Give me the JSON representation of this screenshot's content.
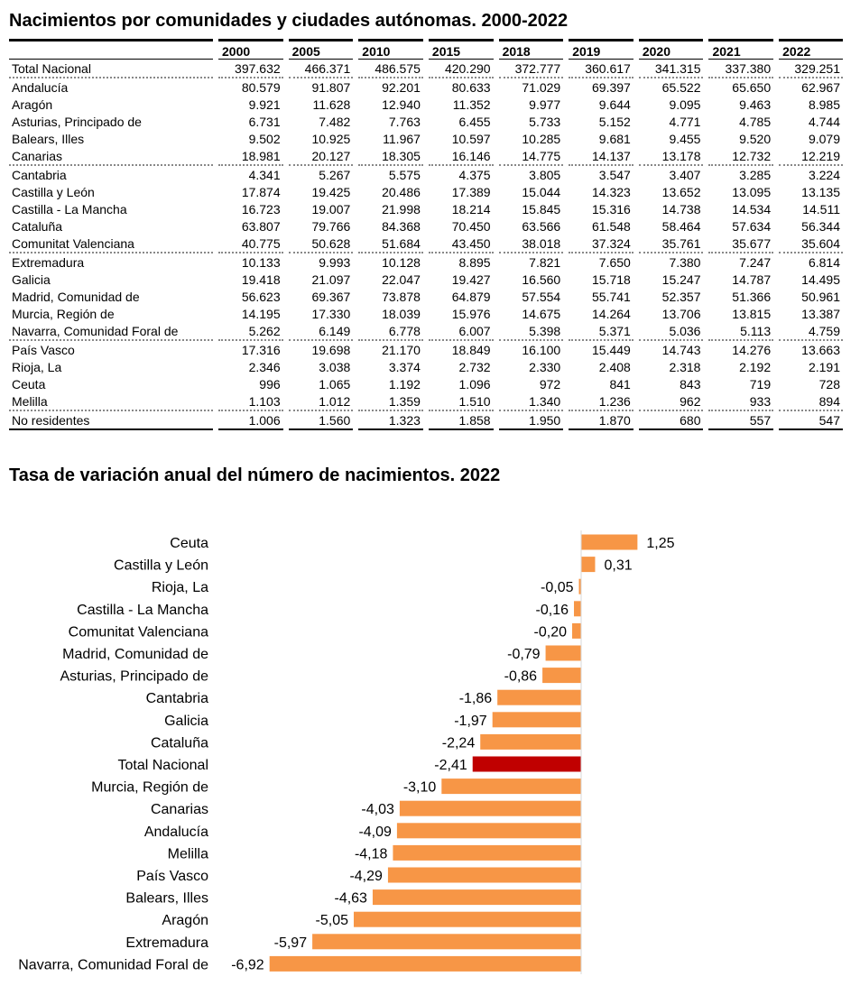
{
  "table": {
    "title": "Nacimientos por comunidades y ciudades autónomas. 2000-2022",
    "columns": [
      "2000",
      "2005",
      "2010",
      "2015",
      "2018",
      "2019",
      "2020",
      "2021",
      "2022"
    ],
    "rows": [
      {
        "label": "Total Nacional",
        "values": [
          "397.632",
          "466.371",
          "486.575",
          "420.290",
          "372.777",
          "360.617",
          "341.315",
          "337.380",
          "329.251"
        ]
      },
      {
        "label": "Andalucía",
        "values": [
          "80.579",
          "91.807",
          "92.201",
          "80.633",
          "71.029",
          "69.397",
          "65.522",
          "65.650",
          "62.967"
        ]
      },
      {
        "label": "Aragón",
        "values": [
          "9.921",
          "11.628",
          "12.940",
          "11.352",
          "9.977",
          "9.644",
          "9.095",
          "9.463",
          "8.985"
        ]
      },
      {
        "label": "Asturias, Principado de",
        "values": [
          "6.731",
          "7.482",
          "7.763",
          "6.455",
          "5.733",
          "5.152",
          "4.771",
          "4.785",
          "4.744"
        ]
      },
      {
        "label": "Balears, Illes",
        "values": [
          "9.502",
          "10.925",
          "11.967",
          "10.597",
          "10.285",
          "9.681",
          "9.455",
          "9.520",
          "9.079"
        ]
      },
      {
        "label": "Canarias",
        "values": [
          "18.981",
          "20.127",
          "18.305",
          "16.146",
          "14.775",
          "14.137",
          "13.178",
          "12.732",
          "12.219"
        ]
      },
      {
        "label": "Cantabria",
        "values": [
          "4.341",
          "5.267",
          "5.575",
          "4.375",
          "3.805",
          "3.547",
          "3.407",
          "3.285",
          "3.224"
        ]
      },
      {
        "label": "Castilla y León",
        "values": [
          "17.874",
          "19.425",
          "20.486",
          "17.389",
          "15.044",
          "14.323",
          "13.652",
          "13.095",
          "13.135"
        ]
      },
      {
        "label": "Castilla - La Mancha",
        "values": [
          "16.723",
          "19.007",
          "21.998",
          "18.214",
          "15.845",
          "15.316",
          "14.738",
          "14.534",
          "14.511"
        ]
      },
      {
        "label": "Cataluña",
        "values": [
          "63.807",
          "79.766",
          "84.368",
          "70.450",
          "63.566",
          "61.548",
          "58.464",
          "57.634",
          "56.344"
        ]
      },
      {
        "label": "Comunitat Valenciana",
        "values": [
          "40.775",
          "50.628",
          "51.684",
          "43.450",
          "38.018",
          "37.324",
          "35.761",
          "35.677",
          "35.604"
        ]
      },
      {
        "label": "Extremadura",
        "values": [
          "10.133",
          "9.993",
          "10.128",
          "8.895",
          "7.821",
          "7.650",
          "7.380",
          "7.247",
          "6.814"
        ]
      },
      {
        "label": "Galicia",
        "values": [
          "19.418",
          "21.097",
          "22.047",
          "19.427",
          "16.560",
          "15.718",
          "15.247",
          "14.787",
          "14.495"
        ]
      },
      {
        "label": "Madrid, Comunidad de",
        "values": [
          "56.623",
          "69.367",
          "73.878",
          "64.879",
          "57.554",
          "55.741",
          "52.357",
          "51.366",
          "50.961"
        ]
      },
      {
        "label": "Murcia, Región de",
        "values": [
          "14.195",
          "17.330",
          "18.039",
          "15.976",
          "14.675",
          "14.264",
          "13.706",
          "13.815",
          "13.387"
        ]
      },
      {
        "label": "Navarra, Comunidad Foral de",
        "values": [
          "5.262",
          "6.149",
          "6.778",
          "6.007",
          "5.398",
          "5.371",
          "5.036",
          "5.113",
          "4.759"
        ]
      },
      {
        "label": "País Vasco",
        "values": [
          "17.316",
          "19.698",
          "21.170",
          "18.849",
          "16.100",
          "15.449",
          "14.743",
          "14.276",
          "13.663"
        ]
      },
      {
        "label": "Rioja, La",
        "values": [
          "2.346",
          "3.038",
          "3.374",
          "2.732",
          "2.330",
          "2.408",
          "2.318",
          "2.192",
          "2.191"
        ]
      },
      {
        "label": "Ceuta",
        "values": [
          "996",
          "1.065",
          "1.192",
          "1.096",
          "972",
          "841",
          "843",
          "719",
          "728"
        ]
      },
      {
        "label": "Melilla",
        "values": [
          "1.103",
          "1.012",
          "1.359",
          "1.510",
          "1.340",
          "1.236",
          "962",
          "933",
          "894"
        ]
      },
      {
        "label": "No residentes",
        "values": [
          "1.006",
          "1.560",
          "1.323",
          "1.858",
          "1.950",
          "1.870",
          "680",
          "557",
          "547"
        ]
      }
    ]
  },
  "chart_data": {
    "type": "bar",
    "orientation": "horizontal",
    "title": "Tasa de variación anual del número de nacimientos. 2022",
    "categories": [
      "Ceuta",
      "Castilla y León",
      "Rioja, La",
      "Castilla - La Mancha",
      "Comunitat Valenciana",
      "Madrid, Comunidad de",
      "Asturias, Principado de",
      "Cantabria",
      "Galicia",
      "Cataluña",
      "Total Nacional",
      "Murcia, Región de",
      "Canarias",
      "Andalucía",
      "Melilla",
      "País Vasco",
      "Balears, Illes",
      "Aragón",
      "Extremadura",
      "Navarra, Comunidad Foral de"
    ],
    "values": [
      1.25,
      0.31,
      -0.05,
      -0.16,
      -0.2,
      -0.79,
      -0.86,
      -1.86,
      -1.97,
      -2.24,
      -2.41,
      -3.1,
      -4.03,
      -4.09,
      -4.18,
      -4.29,
      -4.63,
      -5.05,
      -5.97,
      -6.92
    ],
    "labels": [
      "1,25",
      "0,31",
      "-0,05",
      "-0,16",
      "-0,20",
      "-0,79",
      "-0,86",
      "-1,86",
      "-1,97",
      "-2,24",
      "-2,41",
      "-3,10",
      "-4,03",
      "-4,09",
      "-4,18",
      "-4,29",
      "-4,63",
      "-5,05",
      "-5,97",
      "-6,92"
    ],
    "highlight": "Total Nacional",
    "colors": {
      "bar": "#F79646",
      "highlight": "#C00000"
    },
    "grid": false
  }
}
